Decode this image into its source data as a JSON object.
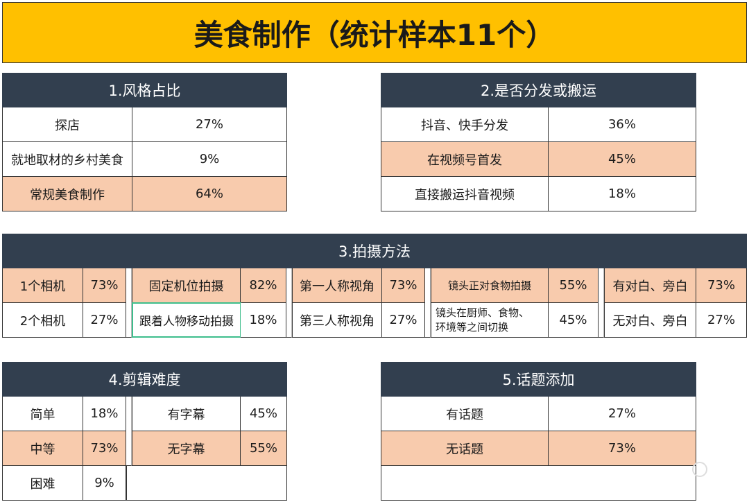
{
  "title": "美食制作（统计样本11个）",
  "section1": {
    "header": "1.风格占比",
    "rows": [
      {
        "label": "探店",
        "value": "27%"
      },
      {
        "label": "就地取材的乡村美食",
        "value": "9%"
      },
      {
        "label": "常规美食制作",
        "value": "64%"
      }
    ]
  },
  "section2": {
    "header": "2.是否分发或搬运",
    "rows": [
      {
        "label": "抖音、快手分发",
        "value": "36%"
      },
      {
        "label": "在视频号首发",
        "value": "45%"
      },
      {
        "label": "直接搬运抖音视频",
        "value": "18%"
      }
    ]
  },
  "section3": {
    "header": "3.拍摄方法",
    "groups": [
      {
        "row1": {
          "label": "1个相机",
          "value": "73%"
        },
        "row2": {
          "label": "2个相机",
          "value": "27%"
        }
      },
      {
        "row1": {
          "label": "固定机位拍摄",
          "value": "82%"
        },
        "row2": {
          "label": "跟着人物移动拍摄",
          "value": "18%"
        }
      },
      {
        "row1": {
          "label": "第一人称视角",
          "value": "73%"
        },
        "row2": {
          "label": "第三人称视角",
          "value": "27%"
        }
      },
      {
        "row1": {
          "label": "镜头正对食物拍摄",
          "value": "55%"
        },
        "row2": {
          "label_line1": "镜头在厨师、食物、",
          "label_line2": "环境等之间切换",
          "value": "45%"
        }
      },
      {
        "row1": {
          "label": "有对白、旁白",
          "value": "73%"
        },
        "row2": {
          "label": "无对白、旁白",
          "value": "27%"
        }
      }
    ]
  },
  "section4": {
    "header": "4.剪辑难度",
    "left": [
      {
        "label": "简单",
        "value": "18%"
      },
      {
        "label": "中等",
        "value": "73%"
      },
      {
        "label": "困难",
        "value": "9%"
      }
    ],
    "right": [
      {
        "label": "有字幕",
        "value": "45%"
      },
      {
        "label": "无字幕",
        "value": "55%"
      }
    ]
  },
  "section5": {
    "header": "5.话题添加",
    "rows": [
      {
        "label": "有话题",
        "value": "27%"
      },
      {
        "label": "无话题",
        "value": "73%"
      }
    ]
  },
  "colors": {
    "title_bg": "#FFC000",
    "header_bg": "#323F4F",
    "highlight": "#F8CBAD",
    "selection": "#3DBE8C"
  }
}
